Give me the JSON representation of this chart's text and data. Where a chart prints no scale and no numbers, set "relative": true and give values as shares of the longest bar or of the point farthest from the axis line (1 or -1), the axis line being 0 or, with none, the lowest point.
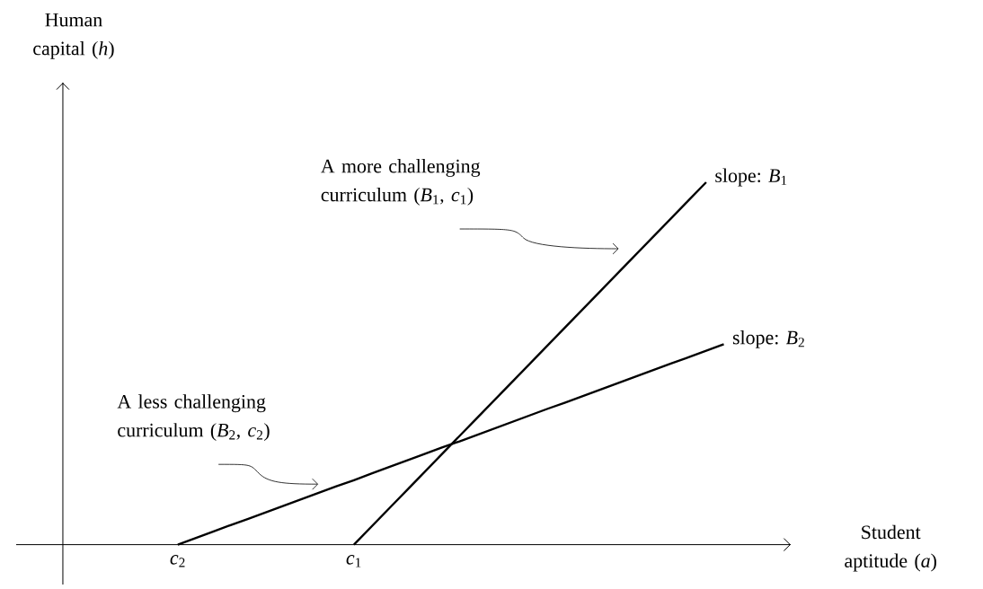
{
  "chart_data": {
    "type": "line",
    "relative": true,
    "categories": [
      "*c*$_{2}$",
      null,
      null,
      null,
      null,
      null,
      null,
      null,
      null,
      null,
      "*c*$_{1}$",
      null,
      null,
      null,
      null,
      null,
      null,
      null,
      null,
      null,
      null,
      null,
      null,
      null,
      null,
      null,
      null,
      null,
      null,
      null,
      null,
      null
    ],
    "series": [
      {
        "name": "slope: *B*$_{1}$",
        "color": "#000000",
        "values": [
          null,
          null,
          null,
          null,
          null,
          null,
          null,
          null,
          null,
          null,
          0,
          0.05,
          0.1,
          0.15,
          0.2,
          0.25,
          0.3,
          0.35,
          0.4,
          0.45,
          0.5,
          0.55,
          0.6,
          0.65,
          0.7,
          0.75,
          0.8,
          0.85,
          0.9,
          0.95,
          1,
          null
        ]
      },
      {
        "name": "slope: *B*$_{2}$",
        "color": "#000000",
        "values": [
          0,
          0.018,
          0.036,
          0.054,
          0.071,
          0.089,
          0.107,
          0.125,
          0.143,
          0.161,
          0.178,
          0.196,
          0.214,
          0.232,
          0.25,
          0.268,
          0.285,
          0.303,
          0.321,
          0.339,
          0.357,
          0.375,
          0.392,
          0.41,
          0.428,
          0.446,
          0.464,
          0.482,
          0.5,
          0.517,
          0.535,
          0.553
        ]
      }
    ],
    "annotations": [
      "A more challenging curriculum (*B*$_{1}$, *c*$_{1}$)",
      "A less challenging curriculum (*B*$_{2}$, *c*$_{2}$)",
      "Student aptitude (*a*)",
      "Human capital (*h*)"
    ],
    "marker": "none"
  }
}
